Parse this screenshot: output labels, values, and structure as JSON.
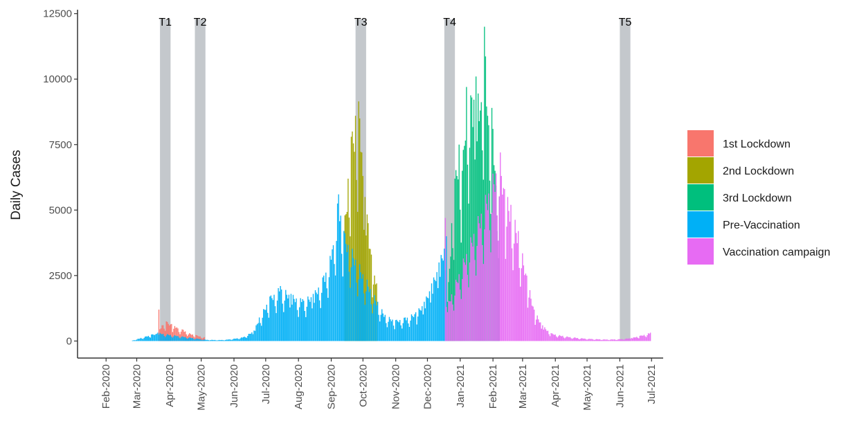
{
  "chart_data": {
    "type": "bar",
    "ylabel": "Daily Cases",
    "ylim": [
      -650,
      12650
    ],
    "xlim": [
      "2020-01-05",
      "2021-07-12"
    ],
    "y_ticks": [
      0,
      2500,
      5000,
      7500,
      10000,
      12500
    ],
    "y_tick_labels": [
      "0",
      "2500",
      "5000",
      "7500",
      "10000",
      "12500"
    ],
    "x_ticks": [
      "2020-02-01",
      "2020-03-01",
      "2020-04-01",
      "2020-05-01",
      "2020-06-01",
      "2020-07-01",
      "2020-08-01",
      "2020-09-01",
      "2020-10-01",
      "2020-11-01",
      "2020-12-01",
      "2021-01-01",
      "2021-02-01",
      "2021-03-01",
      "2021-04-01",
      "2021-05-01",
      "2021-06-01",
      "2021-07-01"
    ],
    "x_tick_labels": [
      "Feb-2020",
      "Mar-2020",
      "Apr-2020",
      "May-2020",
      "Jun-2020",
      "Jul-2020",
      "Aug-2020",
      "Sep-2020",
      "Oct-2020",
      "Nov-2020",
      "Dec-2020",
      "Jan-2021",
      "Feb-2021",
      "Mar-2021",
      "Apr-2021",
      "May-2021",
      "Jun-2021",
      "Jul-2021"
    ],
    "grid": false,
    "legend_position": "right",
    "periods": [
      {
        "label": "T1",
        "start": "2020-03-23",
        "end": "2020-04-02"
      },
      {
        "label": "T2",
        "start": "2020-04-25",
        "end": "2020-05-05"
      },
      {
        "label": "T3",
        "start": "2020-09-24",
        "end": "2020-10-04"
      },
      {
        "label": "T4",
        "start": "2020-12-17",
        "end": "2020-12-27"
      },
      {
        "label": "T5",
        "start": "2021-06-01",
        "end": "2021-06-11"
      }
    ],
    "series": [
      {
        "name": "1st Lockdown",
        "color": "#F8766D",
        "start": "2020-03-22",
        "end": "2020-05-04",
        "keypoints": [
          [
            "2020-03-22",
            1200
          ],
          [
            "2020-03-23",
            450
          ],
          [
            "2020-03-25",
            600
          ],
          [
            "2020-03-29",
            750
          ],
          [
            "2020-04-03",
            650
          ],
          [
            "2020-04-08",
            520
          ],
          [
            "2020-04-14",
            430
          ],
          [
            "2020-04-20",
            300
          ],
          [
            "2020-04-26",
            230
          ],
          [
            "2020-05-04",
            150
          ]
        ]
      },
      {
        "name": "2nd Lockdown",
        "color": "#A3A500",
        "start": "2020-09-14",
        "end": "2020-10-14",
        "keypoints": [
          [
            "2020-09-14",
            4800
          ],
          [
            "2020-09-17",
            6200
          ],
          [
            "2020-09-20",
            7800
          ],
          [
            "2020-09-24",
            8600
          ],
          [
            "2020-09-27",
            9150
          ],
          [
            "2020-09-30",
            7200
          ],
          [
            "2020-10-03",
            5500
          ],
          [
            "2020-10-06",
            4500
          ],
          [
            "2020-10-09",
            3300
          ],
          [
            "2020-10-12",
            2500
          ],
          [
            "2020-10-14",
            2200
          ]
        ]
      },
      {
        "name": "3rd Lockdown",
        "color": "#00BF7D",
        "start": "2020-12-20",
        "end": "2021-02-07",
        "keypoints": [
          [
            "2020-12-20",
            1500
          ],
          [
            "2020-12-24",
            4500
          ],
          [
            "2020-12-27",
            6200
          ],
          [
            "2020-12-31",
            7500
          ],
          [
            "2021-01-03",
            6500
          ],
          [
            "2021-01-07",
            9700
          ],
          [
            "2021-01-12",
            9300
          ],
          [
            "2021-01-16",
            10100
          ],
          [
            "2021-01-20",
            8800
          ],
          [
            "2021-01-24",
            12000
          ],
          [
            "2021-01-27",
            8600
          ],
          [
            "2021-01-31",
            8900
          ],
          [
            "2021-02-03",
            6500
          ],
          [
            "2021-02-07",
            5500
          ]
        ]
      },
      {
        "name": "Pre-Vaccination",
        "color": "#00B0F6",
        "start": "2020-02-26",
        "end": "2020-12-19",
        "keypoints": [
          [
            "2020-02-26",
            20
          ],
          [
            "2020-03-05",
            120
          ],
          [
            "2020-03-10",
            180
          ],
          [
            "2020-03-15",
            250
          ],
          [
            "2020-03-20",
            280
          ],
          [
            "2020-03-21",
            320
          ],
          [
            "2020-05-05",
            50
          ],
          [
            "2020-05-20",
            40
          ],
          [
            "2020-05-27",
            60
          ],
          [
            "2020-06-10",
            150
          ],
          [
            "2020-06-20",
            400
          ],
          [
            "2020-06-25",
            900
          ],
          [
            "2020-07-05",
            1700
          ],
          [
            "2020-07-15",
            2100
          ],
          [
            "2020-07-25",
            1800
          ],
          [
            "2020-08-05",
            1600
          ],
          [
            "2020-08-15",
            1800
          ],
          [
            "2020-08-25",
            2500
          ],
          [
            "2020-09-02",
            3500
          ],
          [
            "2020-09-08",
            5600
          ],
          [
            "2020-09-13",
            4200
          ],
          [
            "2020-10-15",
            1500
          ],
          [
            "2020-10-22",
            1000
          ],
          [
            "2020-11-01",
            800
          ],
          [
            "2020-11-10",
            900
          ],
          [
            "2020-11-20",
            1100
          ],
          [
            "2020-11-28",
            1500
          ],
          [
            "2020-12-05",
            2200
          ],
          [
            "2020-12-12",
            3000
          ],
          [
            "2020-12-19",
            4000
          ]
        ]
      },
      {
        "name": "Vaccination campaign",
        "color": "#E76BF3",
        "start": "2020-12-18",
        "end": "2021-06-30",
        "keypoints": [
          [
            "2020-12-18",
            4700
          ],
          [
            "2020-12-19",
            1300
          ],
          [
            "2021-02-08",
            7200
          ],
          [
            "2021-02-12",
            5800
          ],
          [
            "2021-02-18",
            5200
          ],
          [
            "2021-02-25",
            4200
          ],
          [
            "2021-03-05",
            2500
          ],
          [
            "2021-03-12",
            1200
          ],
          [
            "2021-03-20",
            600
          ],
          [
            "2021-03-28",
            300
          ],
          [
            "2021-04-08",
            200
          ],
          [
            "2021-04-20",
            130
          ],
          [
            "2021-05-05",
            80
          ],
          [
            "2021-05-20",
            60
          ],
          [
            "2021-06-01",
            70
          ],
          [
            "2021-06-12",
            120
          ],
          [
            "2021-06-20",
            200
          ],
          [
            "2021-06-30",
            320
          ]
        ]
      }
    ]
  }
}
